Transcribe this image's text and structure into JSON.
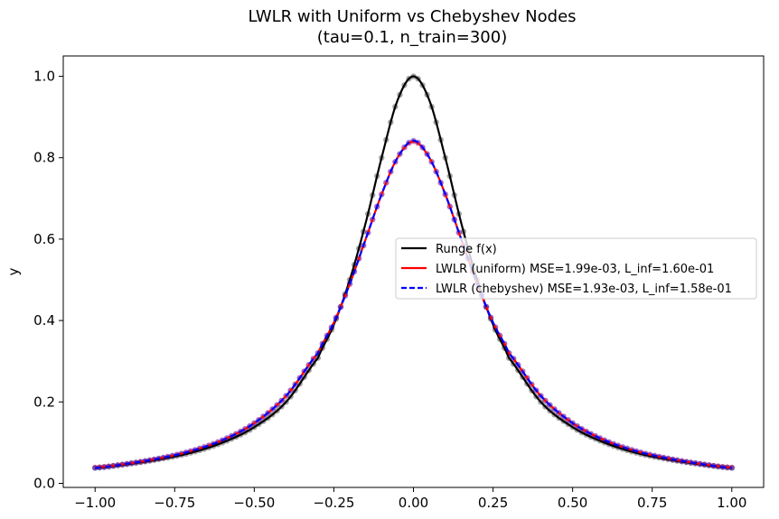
{
  "chart_data": {
    "type": "line",
    "title": "LWLR with Uniform vs Chebyshev Nodes",
    "subtitle": "(tau=0.1, n_train=300)",
    "xlabel": "",
    "ylabel": "y",
    "xlim": [
      -1.1,
      1.1
    ],
    "ylim": [
      -0.01,
      1.05
    ],
    "x_ticks": [
      -1.0,
      -0.75,
      -0.5,
      -0.25,
      0.0,
      0.25,
      0.5,
      0.75,
      1.0
    ],
    "x_tick_labels": [
      "−1.00",
      "−0.75",
      "−0.50",
      "−0.25",
      "0.00",
      "0.25",
      "0.50",
      "0.75",
      "1.00"
    ],
    "y_ticks": [
      0.0,
      0.2,
      0.4,
      0.6,
      0.8,
      1.0
    ],
    "y_tick_labels": [
      "0.0",
      "0.2",
      "0.4",
      "0.6",
      "0.8",
      "1.0"
    ],
    "grid": false,
    "legend_position": "center-right",
    "x": [
      -1.0,
      -0.9,
      -0.8,
      -0.7,
      -0.6,
      -0.5,
      -0.4,
      -0.3,
      -0.25,
      -0.2,
      -0.15,
      -0.1,
      -0.05,
      0.0,
      0.05,
      0.1,
      0.15,
      0.2,
      0.25,
      0.3,
      0.4,
      0.5,
      0.6,
      0.7,
      0.8,
      0.9,
      1.0
    ],
    "series": [
      {
        "name": "Runge f(x)",
        "color": "#000000",
        "style": "solid",
        "values": [
          0.038,
          0.047,
          0.059,
          0.075,
          0.1,
          0.138,
          0.2,
          0.308,
          0.39,
          0.5,
          0.64,
          0.8,
          0.941,
          1.0,
          0.941,
          0.8,
          0.64,
          0.5,
          0.39,
          0.308,
          0.2,
          0.138,
          0.1,
          0.075,
          0.059,
          0.047,
          0.038
        ]
      },
      {
        "name": "LWLR (uniform) MSE=1.99e-03, L_inf=1.60e-01",
        "color": "#ff0000",
        "style": "solid",
        "values": [
          0.039,
          0.048,
          0.061,
          0.079,
          0.106,
          0.148,
          0.215,
          0.32,
          0.395,
          0.49,
          0.6,
          0.71,
          0.8,
          0.84,
          0.8,
          0.71,
          0.6,
          0.49,
          0.395,
          0.32,
          0.215,
          0.148,
          0.106,
          0.079,
          0.061,
          0.048,
          0.039
        ]
      },
      {
        "name": "LWLR (chebyshev) MSE=1.93e-03, L_inf=1.58e-01",
        "color": "#0000ff",
        "style": "dashed",
        "values": [
          0.038,
          0.048,
          0.061,
          0.079,
          0.106,
          0.148,
          0.215,
          0.32,
          0.395,
          0.49,
          0.6,
          0.71,
          0.8,
          0.842,
          0.8,
          0.71,
          0.6,
          0.49,
          0.395,
          0.32,
          0.215,
          0.148,
          0.106,
          0.079,
          0.061,
          0.048,
          0.038
        ]
      }
    ]
  }
}
